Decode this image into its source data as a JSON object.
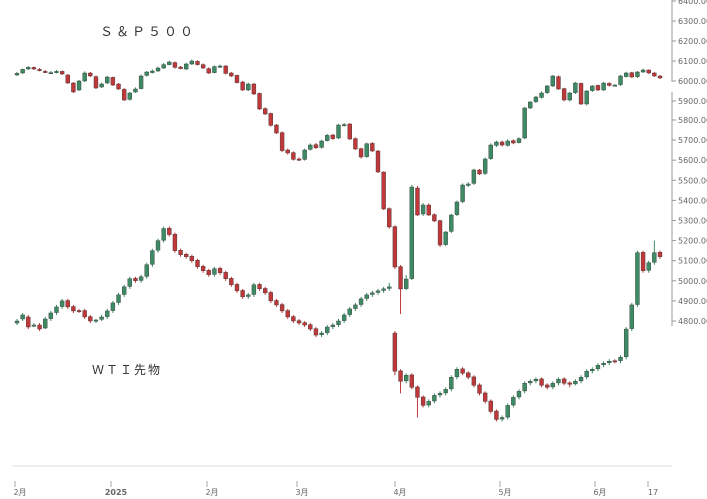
{
  "chart_data": [
    {
      "type": "candlestick",
      "series_label": "Ｓ＆Ｐ５００",
      "y_ticks": [
        5900,
        6000,
        6100,
        6200,
        6300,
        6400
      ],
      "y_tick_labels": [
        "5900.00",
        "6000.00",
        "6100.00",
        "6200.00",
        "6300.00",
        "6400.00"
      ],
      "values_close": [
        6038,
        6058,
        6068,
        6060,
        6052,
        6045,
        6042,
        6048,
        6035,
        5990,
        5945,
        6000,
        6040,
        6025,
        5965,
        5985,
        6020,
        5980,
        5960,
        5905,
        5940,
        5960,
        6025,
        6045,
        6050,
        6065,
        6082,
        6095,
        6068,
        6062,
        6085,
        6100,
        6082,
        6065,
        6040,
        6072,
        6075,
        6038,
        6025,
        5992,
        5955,
        5985,
        5935,
        5860,
        5835,
        5778,
        5740,
        5652,
        5640,
        5608,
        5605,
        5655,
        5680,
        5666,
        5700,
        5728,
        5712,
        5780,
        5782,
        5710,
        5660,
        5620,
        5686,
        5650,
        5545,
        5360,
        5270,
        5070,
        4960,
        5010,
        5470,
        5330,
        5380,
        5330,
        5300,
        5180,
        5245,
        5330,
        5395,
        5480,
        5485,
        5555,
        5535,
        5610,
        5680,
        5695,
        5680,
        5700,
        5690,
        5712,
        5865,
        5895,
        5920,
        5940,
        5975,
        6025,
        5960,
        5905,
        5940,
        5990,
        5885,
        5950,
        5975,
        5955,
        5990,
        5978,
        5980,
        6025,
        6040,
        6020,
        6045,
        6055,
        6040,
        6025,
        6015
      ],
      "values_open": [
        6030,
        6040,
        6060,
        6068,
        6058,
        6048,
        6040,
        6042,
        6048,
        6030,
        5990,
        5955,
        6000,
        6040,
        6022,
        5970,
        5990,
        6018,
        5985,
        5958,
        5908,
        5945,
        5962,
        6028,
        6042,
        6050,
        6065,
        6082,
        6092,
        6070,
        6060,
        6085,
        6098,
        6082,
        6062,
        6042,
        6070,
        6075,
        6040,
        6028,
        5995,
        5955,
        5985,
        5938,
        5862,
        5838,
        5780,
        5742,
        5655,
        5642,
        5610,
        5608,
        5658,
        5682,
        5668,
        5702,
        5730,
        5715,
        5778,
        5785,
        5712,
        5662,
        5622,
        5688,
        5650,
        5545,
        5362,
        5272,
        5072,
        4962,
        5012,
        5465,
        5335,
        5380,
        5332,
        5302,
        5182,
        5248,
        5332,
        5397,
        5478,
        5488,
        5555,
        5538,
        5612,
        5678,
        5695,
        5678,
        5702,
        5692,
        5715,
        5865,
        5897,
        5918,
        5942,
        5975,
        6022,
        5962,
        5905,
        5942,
        5988,
        5885,
        5952,
        5978,
        5955,
        5988,
        5978,
        5982,
        6022,
        6042,
        6022,
        6045,
        6055,
        6040,
        6025
      ],
      "values_high": [
        6045,
        6062,
        6075,
        6072,
        6065,
        6055,
        6050,
        6055,
        6052,
        6035,
        5995,
        6005,
        6048,
        6045,
        6028,
        5992,
        6025,
        6022,
        5990,
        5965,
        5945,
        5968,
        6032,
        6050,
        6058,
        6072,
        6090,
        6102,
        6098,
        6075,
        6092,
        6108,
        6104,
        6088,
        6068,
        6078,
        6082,
        6080,
        6045,
        6032,
        6000,
        5992,
        5990,
        5942,
        5868,
        5842,
        5785,
        5748,
        5662,
        5648,
        5618,
        5662,
        5688,
        5690,
        5706,
        5735,
        5735,
        5786,
        5790,
        5790,
        5718,
        5666,
        5692,
        5694,
        5655,
        5548,
        5368,
        5278,
        5080,
        5030,
        5480,
        5475,
        5390,
        5388,
        5338,
        5306,
        5250,
        5336,
        5402,
        5488,
        5494,
        5562,
        5560,
        5618,
        5688,
        5702,
        5702,
        5708,
        5708,
        5718,
        5870,
        5900,
        5926,
        5948,
        5980,
        6030,
        6028,
        5966,
        5946,
        5995,
        5992,
        5955,
        5980,
        5982,
        5995,
        5994,
        5984,
        6030,
        6046,
        6046,
        6050,
        6062,
        6058,
        6045,
        6030
      ],
      "values_low": [
        6025,
        6035,
        6055,
        6055,
        6048,
        6040,
        6035,
        6038,
        6030,
        5985,
        5940,
        5950,
        5995,
        6020,
        5960,
        5965,
        5985,
        5975,
        5955,
        5900,
        5902,
        5940,
        5958,
        6022,
        6038,
        6045,
        6060,
        6078,
        6062,
        6058,
        6055,
        6080,
        6078,
        6060,
        6035,
        6038,
        6065,
        6032,
        6020,
        5988,
        5950,
        5950,
        5930,
        5855,
        5830,
        5772,
        5735,
        5645,
        5632,
        5602,
        5600,
        5602,
        5652,
        5660,
        5662,
        5698,
        5705,
        5710,
        5772,
        5705,
        5655,
        5612,
        5616,
        5645,
        5540,
        5355,
        5262,
        5060,
        4835,
        4955,
        5005,
        5325,
        5325,
        5325,
        5295,
        5170,
        5175,
        5240,
        5325,
        5390,
        5470,
        5480,
        5530,
        5530,
        5605,
        5670,
        5672,
        5672,
        5684,
        5688,
        5710,
        5860,
        5890,
        5912,
        5935,
        5970,
        5955,
        5898,
        5898,
        5935,
        5880,
        5878,
        5945,
        5950,
        5950,
        5972,
        5972,
        5975,
        6018,
        6015,
        6015,
        6040,
        6035,
        6020,
        6010
      ]
    },
    {
      "type": "candlestick",
      "series_label": "ＷＴＩ先物",
      "y_ticks": [
        4800,
        4900,
        5000,
        5100,
        5200,
        5300,
        5400,
        5500,
        5600,
        5700,
        5800
      ],
      "y_tick_labels": [
        "4800.00",
        "4900.00",
        "5000.00",
        "5100.00",
        "5200.00",
        "5300.00",
        "5400.00",
        "5500.00",
        "5600.00",
        "5700.00",
        "5800.00"
      ],
      "values_close": [
        4800,
        4830,
        4770,
        4780,
        4760,
        4810,
        4840,
        4870,
        4900,
        4870,
        4850,
        4850,
        4820,
        4800,
        4805,
        4820,
        4850,
        4890,
        4930,
        4970,
        5010,
        5000,
        5020,
        5080,
        5150,
        5200,
        5260,
        5230,
        5150,
        5130,
        5120,
        5100,
        5070,
        5050,
        5030,
        5060,
        5040,
        5010,
        4980,
        4950,
        4920,
        4930,
        4980,
        4960,
        4940,
        4900,
        4880,
        4850,
        4820,
        4800,
        4790,
        4780,
        4760,
        4730,
        4740,
        4770,
        4780,
        4800,
        4830,
        4860,
        4880,
        4910,
        4930,
        4940,
        4950,
        4960,
        4970,
        4550,
        4500,
        4530,
        4470,
        4420,
        4380,
        4400,
        4430,
        4440,
        4460,
        4520,
        4560,
        4540,
        4520,
        4480,
        4440,
        4400,
        4350,
        4310,
        4320,
        4380,
        4420,
        4450,
        4490,
        4500,
        4510,
        4480,
        4470,
        4490,
        4510,
        4490,
        4485,
        4500,
        4520,
        4550,
        4560,
        4580,
        4590,
        4600,
        4600,
        4620,
        4760,
        4880,
        5140,
        5050,
        5090,
        5140,
        5120
      ],
      "values_open": [
        4790,
        4810,
        4820,
        4775,
        4780,
        4765,
        4812,
        4842,
        4872,
        4902,
        4872,
        4852,
        4852,
        4822,
        4802,
        4808,
        4822,
        4852,
        4892,
        4932,
        4972,
        5012,
        5002,
        5022,
        5082,
        5152,
        5202,
        5262,
        5232,
        5152,
        5132,
        5122,
        5102,
        5072,
        5052,
        5032,
        5062,
        5042,
        5012,
        4982,
        4952,
        4922,
        4932,
        4982,
        4962,
        4942,
        4902,
        4882,
        4852,
        4822,
        4802,
        4792,
        4782,
        4762,
        4732,
        4742,
        4772,
        4782,
        4802,
        4832,
        4862,
        4882,
        4912,
        4932,
        4942,
        4952,
        4962,
        4740,
        4552,
        4502,
        4532,
        4472,
        4422,
        4382,
        4402,
        4432,
        4442,
        4462,
        4522,
        4562,
        4542,
        4522,
        4482,
        4442,
        4402,
        4352,
        4312,
        4322,
        4382,
        4422,
        4452,
        4492,
        4502,
        4512,
        4482,
        4472,
        4492,
        4512,
        4492,
        4487,
        4502,
        4522,
        4552,
        4562,
        4582,
        4592,
        4602,
        4602,
        4622,
        4762,
        4882,
        5142,
        5052,
        5092,
        5142
      ],
      "values_high": [
        4810,
        4840,
        4830,
        4790,
        4790,
        4820,
        4850,
        4880,
        4910,
        4910,
        4880,
        4860,
        4860,
        4830,
        4810,
        4830,
        4860,
        4900,
        4940,
        4980,
        5020,
        5020,
        5030,
        5090,
        5160,
        5210,
        5270,
        5270,
        5240,
        5160,
        5140,
        5130,
        5110,
        5080,
        5060,
        5070,
        5070,
        5050,
        5020,
        4990,
        4960,
        4940,
        4990,
        4990,
        4970,
        4950,
        4910,
        4890,
        4860,
        4830,
        4810,
        4800,
        4790,
        4770,
        4750,
        4780,
        4790,
        4810,
        4840,
        4870,
        4890,
        4920,
        4940,
        4950,
        4960,
        4970,
        4990,
        4750,
        4560,
        4540,
        4540,
        4480,
        4430,
        4410,
        4440,
        4450,
        4470,
        4530,
        4570,
        4570,
        4550,
        4530,
        4490,
        4450,
        4410,
        4360,
        4330,
        4390,
        4430,
        4460,
        4500,
        4510,
        4520,
        4520,
        4490,
        4500,
        4520,
        4520,
        4500,
        4510,
        4530,
        4560,
        4570,
        4590,
        4600,
        4610,
        4610,
        4630,
        4770,
        4890,
        5150,
        5150,
        5100,
        5200,
        5150
      ],
      "values_low": [
        4780,
        4800,
        4760,
        4770,
        4750,
        4760,
        4800,
        4830,
        4860,
        4860,
        4840,
        4840,
        4810,
        4790,
        4790,
        4800,
        4810,
        4840,
        4880,
        4920,
        4960,
        4990,
        4990,
        5010,
        5070,
        5140,
        5190,
        5220,
        5140,
        5120,
        5110,
        5090,
        5060,
        5040,
        5020,
        5020,
        5030,
        5000,
        4970,
        4940,
        4910,
        4910,
        4920,
        4950,
        4930,
        4890,
        4870,
        4840,
        4810,
        4790,
        4780,
        4770,
        4750,
        4720,
        4720,
        4730,
        4760,
        4770,
        4790,
        4820,
        4850,
        4870,
        4900,
        4920,
        4930,
        4940,
        4950,
        4530,
        4440,
        4490,
        4460,
        4320,
        4370,
        4370,
        4390,
        4420,
        4430,
        4450,
        4510,
        4530,
        4510,
        4470,
        4430,
        4390,
        4340,
        4300,
        4300,
        4310,
        4370,
        4410,
        4440,
        4480,
        4490,
        4470,
        4460,
        4460,
        4480,
        4480,
        4470,
        4480,
        4490,
        4510,
        4540,
        4550,
        4570,
        4580,
        4590,
        4590,
        4610,
        4750,
        4870,
        5040,
        5040,
        5080,
        5110
      ]
    }
  ],
  "x_axis_labels": [
    "2月",
    "2025",
    "2月",
    "3月",
    "4月",
    "5月",
    "6月",
    "17"
  ],
  "colors": {
    "up": "#3d8b64",
    "down": "#c0383a",
    "axis": "#999999",
    "tick_text": "#666666",
    "label_text": "#333333"
  }
}
